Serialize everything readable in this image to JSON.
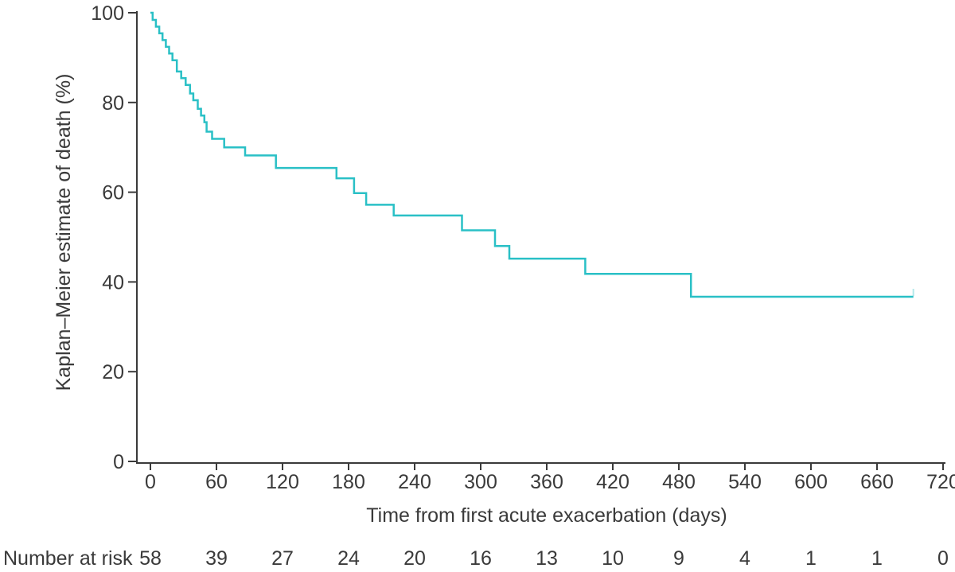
{
  "figure": {
    "background": "#FFFFFF"
  },
  "chart_data": {
    "type": "line",
    "subtype": "kaplan-meier-step",
    "title": "",
    "xlabel": "Time from first acute exacerbation (days)",
    "ylabel": "Kaplan–Meier estimate of death (%)",
    "xlim": [
      0,
      720
    ],
    "ylim": [
      0,
      100
    ],
    "xticks": [
      0,
      60,
      120,
      180,
      240,
      300,
      360,
      420,
      480,
      540,
      600,
      660,
      720
    ],
    "yticks": [
      0,
      20,
      40,
      60,
      80,
      100
    ],
    "grid": false,
    "legend": "none",
    "colors": {
      "line": "#2AC0C6",
      "axis": "#3A3A3A",
      "text": "#3A3A3A"
    },
    "series": [
      {
        "name": "Kaplan–Meier estimate of death",
        "step_points": [
          [
            0,
            100
          ],
          [
            2,
            98.4
          ],
          [
            5,
            96.9
          ],
          [
            8,
            95.4
          ],
          [
            11,
            93.9
          ],
          [
            14,
            92.4
          ],
          [
            17,
            90.9
          ],
          [
            20,
            89.4
          ],
          [
            24,
            86.9
          ],
          [
            28,
            85.4
          ],
          [
            32,
            83.9
          ],
          [
            36,
            82.0
          ],
          [
            39,
            80.5
          ],
          [
            43,
            78.6
          ],
          [
            46,
            77.1
          ],
          [
            49,
            75.6
          ],
          [
            51,
            73.5
          ],
          [
            56,
            71.9
          ],
          [
            67,
            70.0
          ],
          [
            86,
            68.2
          ],
          [
            114,
            65.4
          ],
          [
            169,
            63.1
          ],
          [
            185,
            59.8
          ],
          [
            196,
            57.2
          ],
          [
            221,
            54.8
          ],
          [
            283,
            51.5
          ],
          [
            313,
            48.0
          ],
          [
            326,
            45.2
          ],
          [
            395,
            41.8
          ],
          [
            491,
            36.7
          ]
        ],
        "end_time": 693,
        "final_value": 36.7,
        "censored_at_end": true
      }
    ],
    "number_at_risk": {
      "label": "Number at risk",
      "times": [
        0,
        60,
        120,
        180,
        240,
        300,
        360,
        420,
        480,
        540,
        600,
        660,
        720
      ],
      "values": [
        58,
        39,
        27,
        24,
        20,
        16,
        13,
        10,
        9,
        4,
        1,
        1,
        0
      ]
    }
  }
}
